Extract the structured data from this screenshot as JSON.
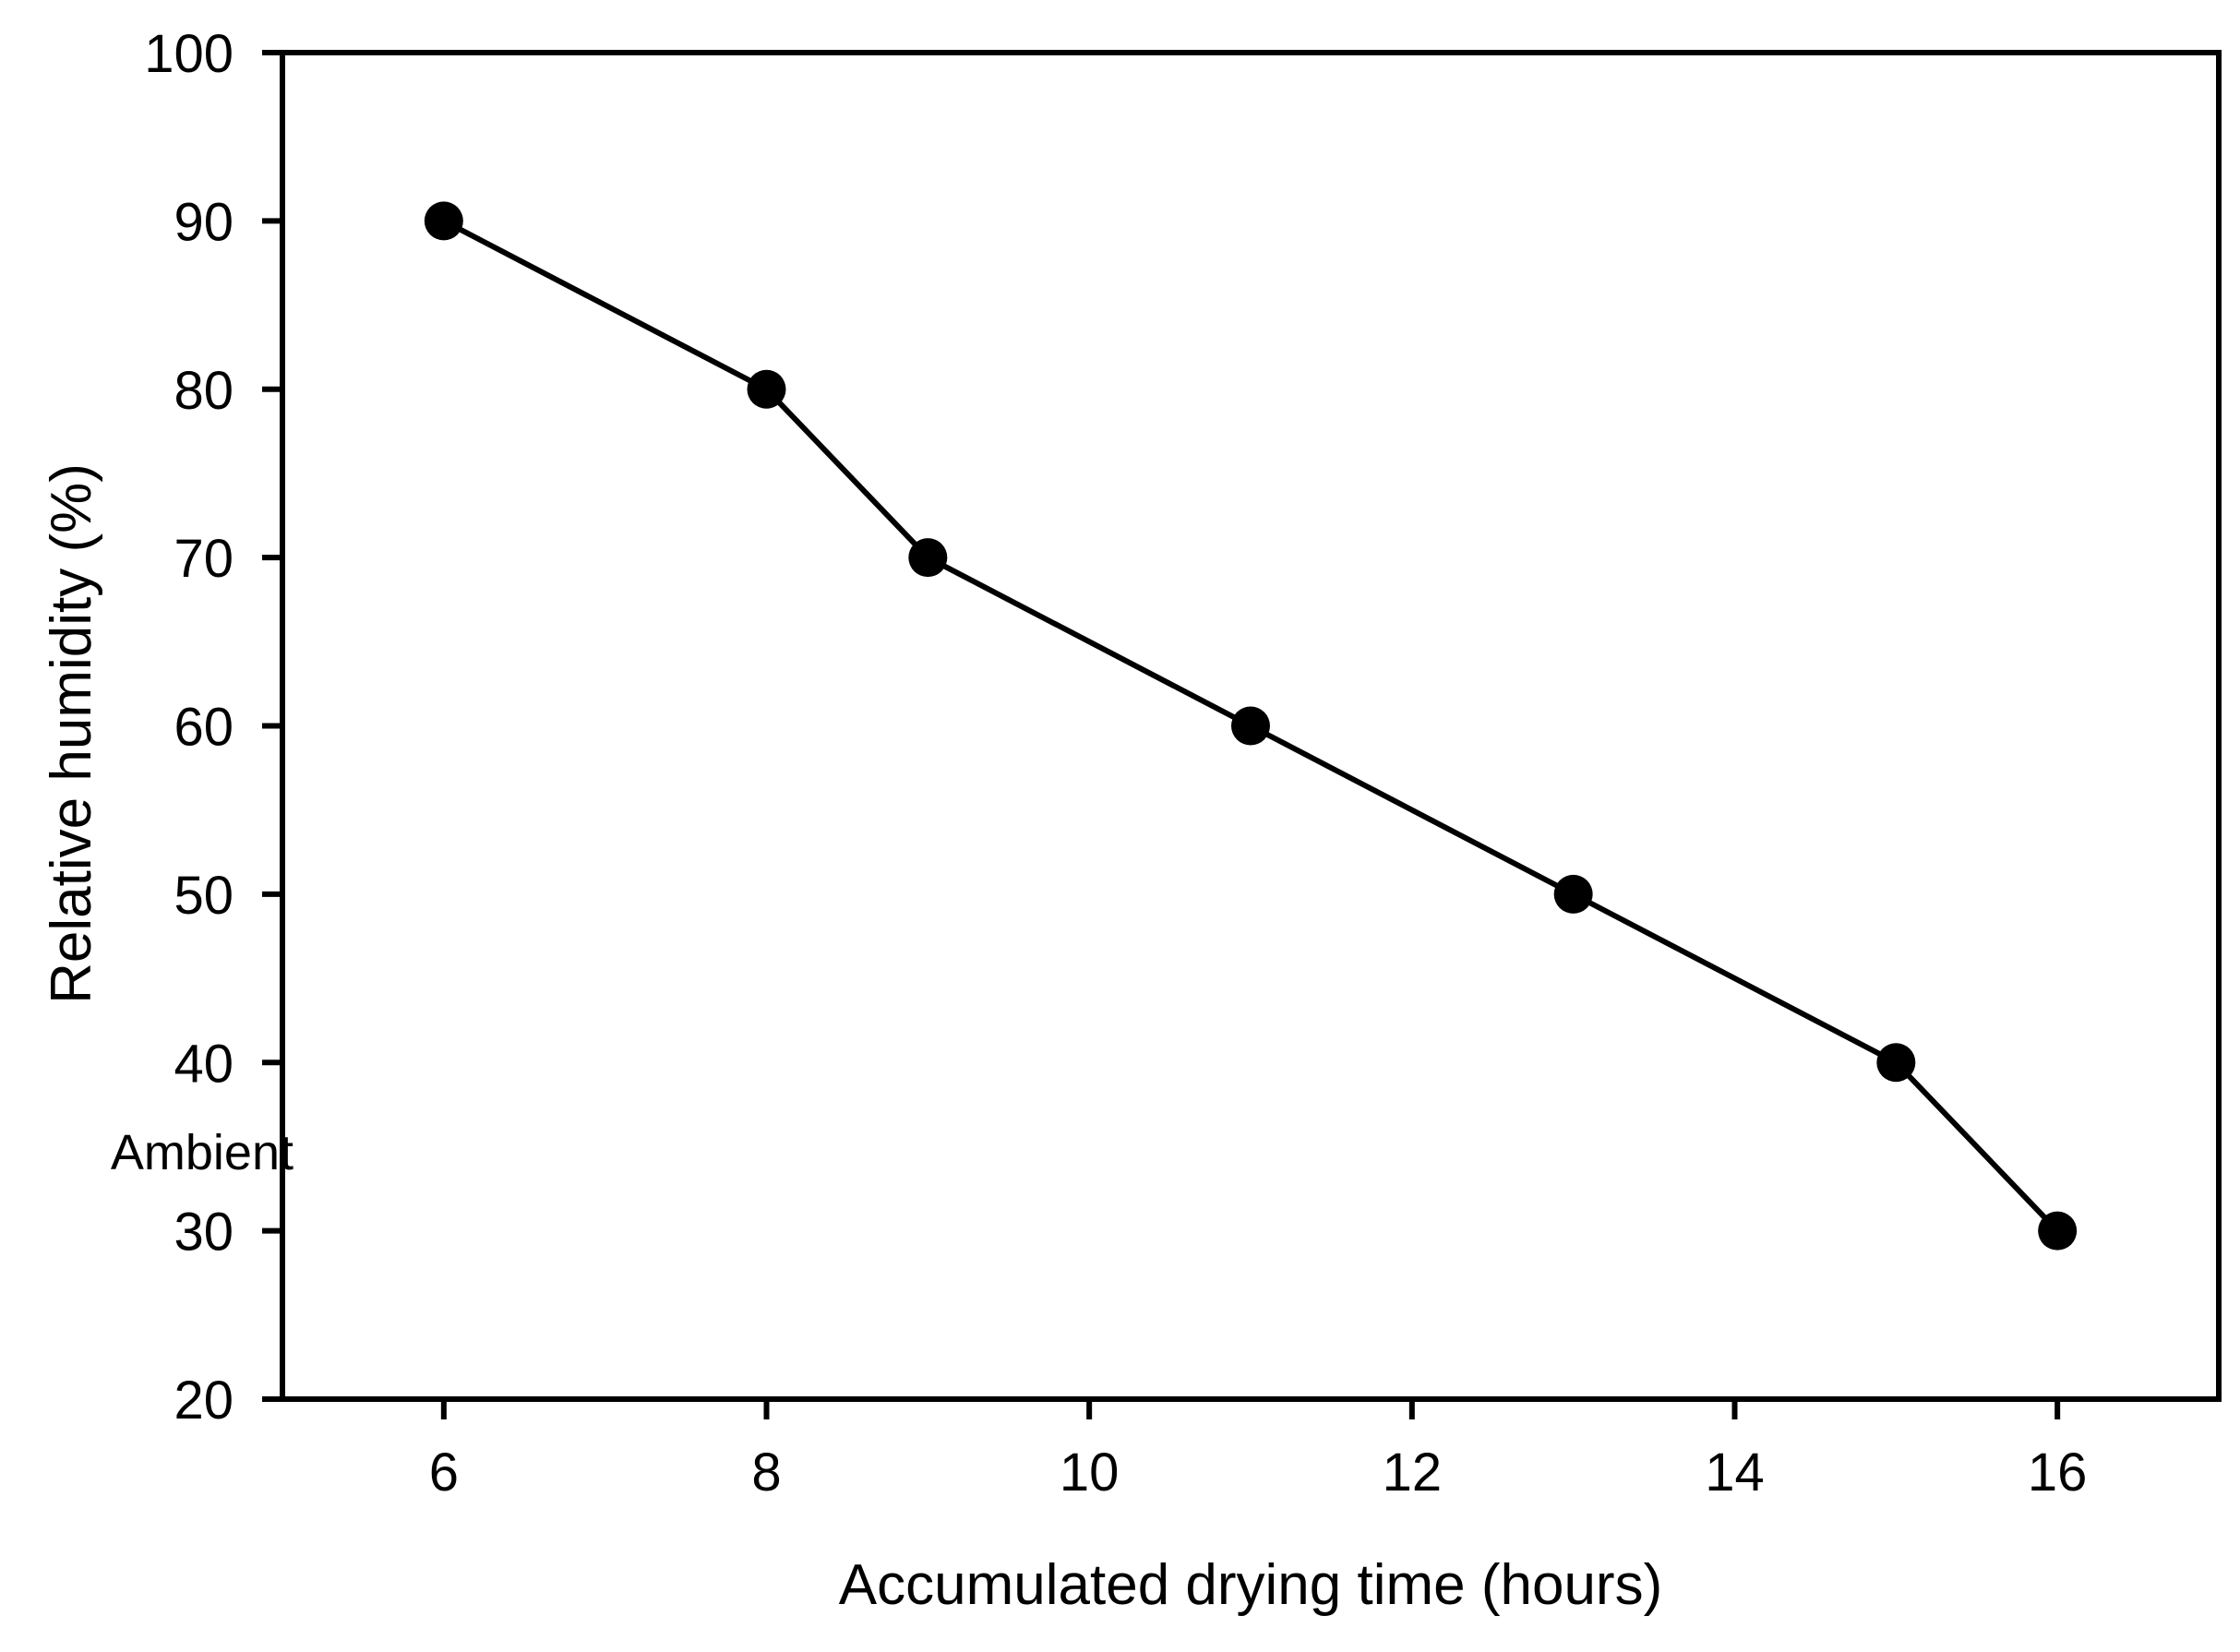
{
  "chart_data": {
    "type": "line",
    "title": "",
    "xlabel": "Accumulated drying time (hours)",
    "ylabel": "Relative humidity (%)",
    "xlim": [
      5,
      17
    ],
    "ylim": [
      20,
      100
    ],
    "x_ticks": [
      6,
      8,
      10,
      12,
      14,
      16
    ],
    "y_ticks": [
      20,
      30,
      40,
      50,
      60,
      70,
      80,
      90,
      100
    ],
    "grid": false,
    "legend": false,
    "plot_border": "full-box",
    "tick_direction": "out",
    "line_color": "#000000",
    "marker": "filled-circle",
    "marker_color": "#000000",
    "background_color": "#ffffff",
    "series": [
      {
        "name": "Relative humidity",
        "x": [
          6,
          8,
          9,
          11,
          13,
          15,
          16
        ],
        "y": [
          90,
          80,
          70,
          60,
          50,
          40,
          30
        ]
      }
    ],
    "annotations": [
      {
        "text": "Ambient",
        "y_value": 34.5,
        "position": "left-of-y-axis"
      }
    ]
  }
}
